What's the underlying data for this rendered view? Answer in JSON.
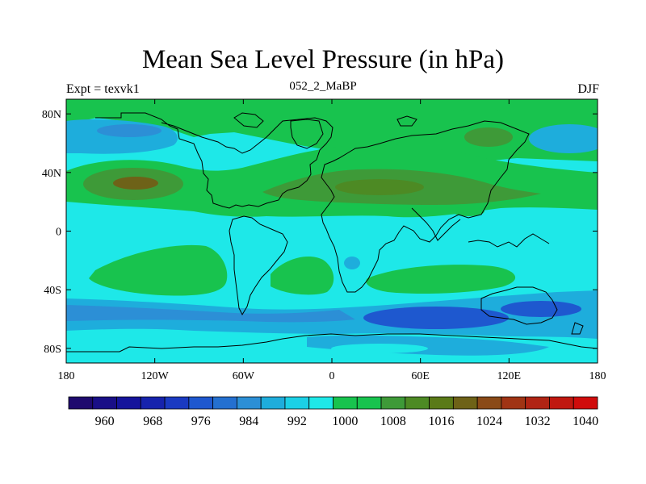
{
  "title": "Mean Sea Level Pressure (in hPa)",
  "left_label": "Expt = texvk1",
  "center_label": "052_2_MaBP",
  "right_label": "DJF",
  "map": {
    "lon_range": [
      -180,
      180
    ],
    "lat_range": [
      -90,
      90
    ],
    "x_ticks": [
      {
        "lon": -180,
        "label": "180"
      },
      {
        "lon": -120,
        "label": "120W"
      },
      {
        "lon": -60,
        "label": "60W"
      },
      {
        "lon": 0,
        "label": "0"
      },
      {
        "lon": 60,
        "label": "60E"
      },
      {
        "lon": 120,
        "label": "120E"
      },
      {
        "lon": 180,
        "label": "180"
      }
    ],
    "y_ticks": [
      {
        "lat": 80,
        "label": "80N"
      },
      {
        "lat": 40,
        "label": "40N"
      },
      {
        "lat": 0,
        "label": "0"
      },
      {
        "lat": -40,
        "label": "40S"
      },
      {
        "lat": -80,
        "label": "80S"
      }
    ]
  },
  "colorbar": {
    "colors": [
      "#1e0a6e",
      "#190f87",
      "#15149b",
      "#1623ad",
      "#1a3ac2",
      "#1e58cf",
      "#2470d0",
      "#2c8fd6",
      "#1eaddc",
      "#1bd0e6",
      "#1ee8e8",
      "#18c34e",
      "#18c34e",
      "#3e9a38",
      "#4d8a24",
      "#5a7a18",
      "#6e6218",
      "#8a4a18",
      "#a03414",
      "#b02414",
      "#c01810",
      "#d00c0c"
    ],
    "labels": [
      "960",
      "968",
      "976",
      "984",
      "992",
      "1000",
      "1008",
      "1016",
      "1024",
      "1032",
      "1040"
    ],
    "label_positions": [
      1.5,
      3.5,
      5.5,
      7.5,
      9.5,
      11.5,
      13.5,
      15.5,
      17.5,
      19.5,
      21.5
    ]
  },
  "fill_colors": {
    "band_1000": "#1ee8e8",
    "band_992": "#1eaddc",
    "band_984": "#2c8fd6",
    "band_976": "#1e58cf",
    "band_1008": "#18c34e",
    "band_1016": "#3e9a38",
    "band_1024": "#6e6218"
  }
}
